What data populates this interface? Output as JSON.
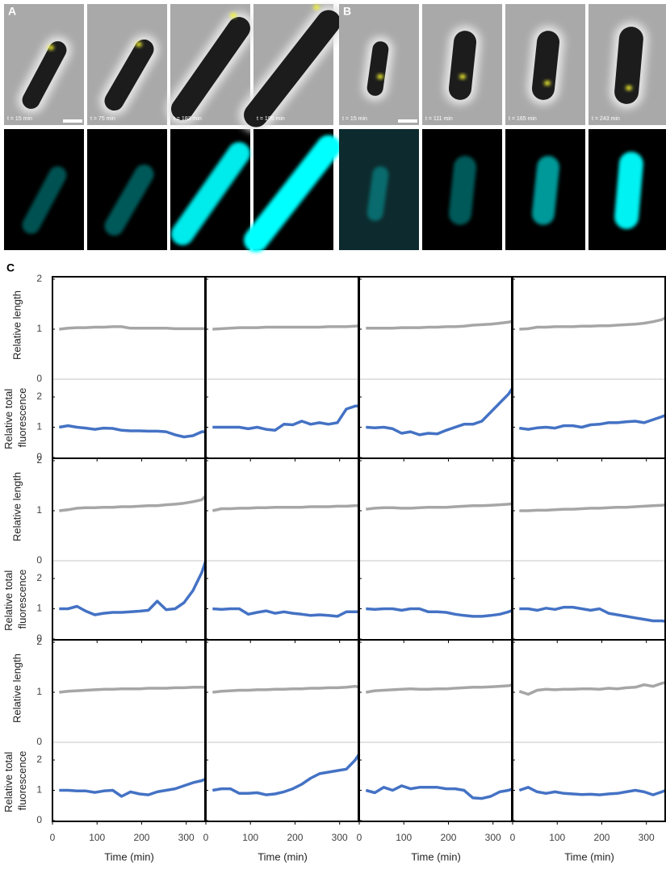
{
  "figure": {
    "a_label": "A",
    "b_label": "B",
    "c_label": "C",
    "a_times": [
      "t = 15 min",
      "t = 75 min",
      "t = 183 min",
      "t = 195 min"
    ],
    "b_times": [
      "t = 15 min",
      "t = 111 min",
      "t = 165 min",
      "t = 243 min"
    ],
    "ylabel": "Relative length",
    "y2label": "Relative total fluorescence",
    "xlabel": "Time (min)"
  },
  "chart_data": [
    {
      "type": "line",
      "x": [
        15,
        35,
        55,
        75,
        95,
        115,
        135,
        155,
        175,
        195,
        215,
        235,
        255,
        275,
        295,
        315,
        335,
        344
      ],
      "xlim": [
        0,
        344
      ],
      "xticks": [
        0,
        100,
        200,
        300
      ],
      "ylim": [
        0,
        2
      ],
      "yticks": [
        0,
        1,
        2
      ],
      "y2lim": [
        0,
        2
      ],
      "y2ticks": [
        0,
        1,
        2
      ],
      "series": [
        {
          "color": "#a6a6a6",
          "values": [
            1.0,
            1.02,
            1.03,
            1.03,
            1.04,
            1.04,
            1.05,
            1.05,
            1.02,
            1.02,
            1.02,
            1.02,
            1.02,
            1.01,
            1.01,
            1.01,
            1.01,
            1.01
          ]
        },
        {
          "color": "#4472c4",
          "axis": "y2",
          "values": [
            1.0,
            1.05,
            1.0,
            0.97,
            0.93,
            0.97,
            0.96,
            0.9,
            0.88,
            0.88,
            0.87,
            0.87,
            0.85,
            0.75,
            0.68,
            0.72,
            0.85,
            0.85
          ]
        }
      ]
    },
    {
      "type": "line",
      "x": [
        15,
        35,
        55,
        75,
        95,
        115,
        135,
        155,
        175,
        195,
        215,
        235,
        255,
        275,
        295,
        315,
        335,
        344
      ],
      "xlim": [
        0,
        344
      ],
      "xticks": [
        0,
        100,
        200,
        300
      ],
      "ylim": [
        0,
        2
      ],
      "yticks": [
        0,
        1,
        2
      ],
      "y2lim": [
        0,
        2
      ],
      "y2ticks": [
        0,
        1,
        2
      ],
      "series": [
        {
          "color": "#a6a6a6",
          "values": [
            1.0,
            1.01,
            1.02,
            1.03,
            1.03,
            1.03,
            1.04,
            1.04,
            1.04,
            1.04,
            1.04,
            1.04,
            1.04,
            1.05,
            1.05,
            1.05,
            1.06,
            1.07
          ]
        },
        {
          "color": "#4472c4",
          "axis": "y2",
          "values": [
            1.0,
            1.0,
            1.0,
            1.0,
            0.95,
            1.0,
            0.93,
            0.9,
            1.1,
            1.08,
            1.2,
            1.1,
            1.15,
            1.1,
            1.15,
            1.6,
            1.7,
            1.7
          ]
        }
      ]
    },
    {
      "type": "line",
      "x": [
        15,
        35,
        55,
        75,
        95,
        115,
        135,
        155,
        175,
        195,
        215,
        235,
        255,
        275,
        295,
        315,
        335,
        344
      ],
      "xlim": [
        0,
        344
      ],
      "xticks": [
        0,
        100,
        200,
        300
      ],
      "ylim": [
        0,
        2
      ],
      "yticks": [
        0,
        1,
        2
      ],
      "y2lim": [
        0,
        2
      ],
      "y2ticks": [
        0,
        1,
        2
      ],
      "series": [
        {
          "color": "#a6a6a6",
          "values": [
            1.02,
            1.02,
            1.02,
            1.02,
            1.03,
            1.03,
            1.03,
            1.04,
            1.04,
            1.05,
            1.05,
            1.06,
            1.08,
            1.09,
            1.1,
            1.12,
            1.14,
            1.16
          ]
        },
        {
          "color": "#4472c4",
          "axis": "y2",
          "values": [
            1.0,
            0.98,
            1.0,
            0.95,
            0.8,
            0.85,
            0.75,
            0.8,
            0.78,
            0.9,
            1.0,
            1.1,
            1.1,
            1.2,
            1.5,
            1.8,
            2.1,
            2.3
          ]
        }
      ]
    },
    {
      "type": "line",
      "x": [
        15,
        35,
        55,
        75,
        95,
        115,
        135,
        155,
        175,
        195,
        215,
        235,
        255,
        275,
        295,
        315,
        335,
        344
      ],
      "xlim": [
        0,
        344
      ],
      "xticks": [
        0,
        100,
        200,
        300
      ],
      "ylim": [
        0,
        2
      ],
      "yticks": [
        0,
        1,
        2
      ],
      "y2lim": [
        0,
        2
      ],
      "y2ticks": [
        0,
        1,
        2
      ],
      "series": [
        {
          "color": "#a6a6a6",
          "values": [
            1.0,
            1.01,
            1.04,
            1.04,
            1.05,
            1.05,
            1.05,
            1.06,
            1.06,
            1.07,
            1.07,
            1.08,
            1.09,
            1.1,
            1.12,
            1.15,
            1.19,
            1.24
          ]
        },
        {
          "color": "#4472c4",
          "axis": "y2",
          "values": [
            0.97,
            0.93,
            0.98,
            1.0,
            0.97,
            1.05,
            1.05,
            1.0,
            1.08,
            1.1,
            1.15,
            1.15,
            1.18,
            1.2,
            1.15,
            1.25,
            1.35,
            1.4
          ]
        }
      ]
    },
    {
      "type": "line",
      "x": [
        15,
        35,
        55,
        75,
        95,
        115,
        135,
        155,
        175,
        195,
        215,
        235,
        255,
        275,
        295,
        315,
        335,
        344
      ],
      "xlim": [
        0,
        344
      ],
      "xticks": [
        0,
        100,
        200,
        300
      ],
      "ylim": [
        0,
        2
      ],
      "yticks": [
        0,
        1,
        2
      ],
      "y2lim": [
        0,
        2
      ],
      "y2ticks": [
        0,
        1,
        2
      ],
      "series": [
        {
          "color": "#a6a6a6",
          "values": [
            1.0,
            1.02,
            1.05,
            1.06,
            1.06,
            1.07,
            1.07,
            1.08,
            1.08,
            1.09,
            1.1,
            1.1,
            1.12,
            1.13,
            1.15,
            1.18,
            1.22,
            1.3
          ]
        },
        {
          "color": "#4472c4",
          "axis": "y2",
          "values": [
            1.0,
            1.0,
            1.08,
            0.92,
            0.8,
            0.85,
            0.88,
            0.88,
            0.9,
            0.92,
            0.95,
            1.25,
            0.97,
            1.0,
            1.2,
            1.6,
            2.2,
            2.6
          ]
        }
      ]
    },
    {
      "type": "line",
      "x": [
        15,
        35,
        55,
        75,
        95,
        115,
        135,
        155,
        175,
        195,
        215,
        235,
        255,
        275,
        295,
        315,
        335,
        344
      ],
      "xlim": [
        0,
        344
      ],
      "xticks": [
        0,
        100,
        200,
        300
      ],
      "ylim": [
        0,
        2
      ],
      "yticks": [
        0,
        1,
        2
      ],
      "y2lim": [
        0,
        2
      ],
      "y2ticks": [
        0,
        1,
        2
      ],
      "series": [
        {
          "color": "#a6a6a6",
          "values": [
            1.0,
            1.04,
            1.04,
            1.05,
            1.05,
            1.06,
            1.06,
            1.07,
            1.07,
            1.07,
            1.07,
            1.08,
            1.08,
            1.08,
            1.09,
            1.09,
            1.1,
            1.1
          ]
        },
        {
          "color": "#4472c4",
          "axis": "y2",
          "values": [
            1.0,
            0.98,
            1.0,
            1.0,
            0.82,
            0.88,
            0.93,
            0.85,
            0.9,
            0.85,
            0.82,
            0.78,
            0.8,
            0.78,
            0.75,
            0.9,
            0.9,
            0.9
          ]
        }
      ]
    },
    {
      "type": "line",
      "x": [
        15,
        35,
        55,
        75,
        95,
        115,
        135,
        155,
        175,
        195,
        215,
        235,
        255,
        275,
        295,
        315,
        335,
        344
      ],
      "xlim": [
        0,
        344
      ],
      "xticks": [
        0,
        100,
        200,
        300
      ],
      "ylim": [
        0,
        2
      ],
      "yticks": [
        0,
        1,
        2
      ],
      "y2lim": [
        0,
        2
      ],
      "y2ticks": [
        0,
        1,
        2
      ],
      "series": [
        {
          "color": "#a6a6a6",
          "values": [
            1.03,
            1.05,
            1.06,
            1.06,
            1.05,
            1.05,
            1.06,
            1.07,
            1.07,
            1.07,
            1.08,
            1.09,
            1.1,
            1.1,
            1.11,
            1.12,
            1.13,
            1.14
          ]
        },
        {
          "color": "#4472c4",
          "axis": "y2",
          "values": [
            1.0,
            0.98,
            1.0,
            1.0,
            0.95,
            1.0,
            1.0,
            0.9,
            0.9,
            0.88,
            0.82,
            0.78,
            0.75,
            0.75,
            0.78,
            0.82,
            0.9,
            0.95
          ]
        }
      ]
    },
    {
      "type": "line",
      "x": [
        15,
        35,
        55,
        75,
        95,
        115,
        135,
        155,
        175,
        195,
        215,
        235,
        255,
        275,
        295,
        315,
        335,
        344
      ],
      "xlim": [
        0,
        344
      ],
      "xticks": [
        0,
        100,
        200,
        300
      ],
      "ylim": [
        0,
        2
      ],
      "yticks": [
        0,
        1,
        2
      ],
      "y2lim": [
        0,
        2
      ],
      "y2ticks": [
        0,
        1,
        2
      ],
      "series": [
        {
          "color": "#a6a6a6",
          "values": [
            1.0,
            1.0,
            1.01,
            1.01,
            1.02,
            1.03,
            1.03,
            1.04,
            1.05,
            1.05,
            1.06,
            1.07,
            1.07,
            1.08,
            1.09,
            1.1,
            1.11,
            1.12
          ]
        },
        {
          "color": "#4472c4",
          "axis": "y2",
          "values": [
            1.0,
            1.0,
            0.95,
            1.02,
            0.98,
            1.05,
            1.05,
            1.0,
            0.95,
            1.0,
            0.85,
            0.8,
            0.75,
            0.7,
            0.65,
            0.6,
            0.6,
            0.58
          ]
        }
      ]
    },
    {
      "type": "line",
      "x": [
        15,
        35,
        55,
        75,
        95,
        115,
        135,
        155,
        175,
        195,
        215,
        235,
        255,
        275,
        295,
        315,
        335,
        344
      ],
      "xlim": [
        0,
        344
      ],
      "xticks": [
        0,
        100,
        200,
        300
      ],
      "ylim": [
        0,
        2
      ],
      "yticks": [
        0,
        1,
        2
      ],
      "y2lim": [
        0,
        2
      ],
      "y2ticks": [
        0,
        1,
        2
      ],
      "series": [
        {
          "color": "#a6a6a6",
          "values": [
            1.0,
            1.02,
            1.03,
            1.04,
            1.05,
            1.06,
            1.06,
            1.07,
            1.07,
            1.07,
            1.08,
            1.08,
            1.08,
            1.09,
            1.09,
            1.1,
            1.1,
            1.1
          ]
        },
        {
          "color": "#4472c4",
          "axis": "y2",
          "values": [
            1.0,
            1.0,
            0.98,
            0.98,
            0.93,
            0.98,
            1.0,
            0.8,
            0.95,
            0.88,
            0.85,
            0.95,
            1.0,
            1.05,
            1.15,
            1.25,
            1.32,
            1.38
          ]
        }
      ]
    },
    {
      "type": "line",
      "x": [
        15,
        35,
        55,
        75,
        95,
        115,
        135,
        155,
        175,
        195,
        215,
        235,
        255,
        275,
        295,
        315,
        335,
        344
      ],
      "xlim": [
        0,
        344
      ],
      "xticks": [
        0,
        100,
        200,
        300
      ],
      "ylim": [
        0,
        2
      ],
      "yticks": [
        0,
        1,
        2
      ],
      "y2lim": [
        0,
        2
      ],
      "y2ticks": [
        0,
        1,
        2
      ],
      "series": [
        {
          "color": "#a6a6a6",
          "values": [
            1.0,
            1.02,
            1.03,
            1.04,
            1.04,
            1.05,
            1.05,
            1.06,
            1.06,
            1.07,
            1.07,
            1.08,
            1.08,
            1.09,
            1.09,
            1.1,
            1.12,
            1.1
          ]
        },
        {
          "color": "#4472c4",
          "axis": "y2",
          "values": [
            1.0,
            1.05,
            1.05,
            0.9,
            0.9,
            0.92,
            0.85,
            0.88,
            0.95,
            1.05,
            1.2,
            1.4,
            1.55,
            1.6,
            1.65,
            1.7,
            2.0,
            2.2
          ]
        }
      ]
    },
    {
      "type": "line",
      "x": [
        15,
        35,
        55,
        75,
        95,
        115,
        135,
        155,
        175,
        195,
        215,
        235,
        255,
        275,
        295,
        315,
        335,
        344
      ],
      "xlim": [
        0,
        344
      ],
      "xticks": [
        0,
        100,
        200,
        300
      ],
      "ylim": [
        0,
        2
      ],
      "yticks": [
        0,
        1,
        2
      ],
      "y2lim": [
        0,
        2
      ],
      "y2ticks": [
        0,
        1,
        2
      ],
      "series": [
        {
          "color": "#a6a6a6",
          "values": [
            1.0,
            1.03,
            1.04,
            1.05,
            1.06,
            1.07,
            1.06,
            1.06,
            1.07,
            1.07,
            1.08,
            1.09,
            1.1,
            1.1,
            1.11,
            1.12,
            1.13,
            1.15
          ]
        },
        {
          "color": "#4472c4",
          "axis": "y2",
          "values": [
            1.0,
            0.92,
            1.1,
            1.0,
            1.15,
            1.05,
            1.1,
            1.1,
            1.1,
            1.05,
            1.05,
            1.0,
            0.75,
            0.73,
            0.8,
            0.95,
            1.0,
            1.05
          ]
        }
      ]
    },
    {
      "type": "line",
      "x": [
        15,
        35,
        55,
        75,
        95,
        115,
        135,
        155,
        175,
        195,
        215,
        235,
        255,
        275,
        295,
        315,
        335,
        344
      ],
      "xlim": [
        0,
        344
      ],
      "xticks": [
        0,
        100,
        200,
        300
      ],
      "ylim": [
        0,
        2
      ],
      "yticks": [
        0,
        1,
        2
      ],
      "y2lim": [
        0,
        2
      ],
      "y2ticks": [
        0,
        1,
        2
      ],
      "series": [
        {
          "color": "#a6a6a6",
          "values": [
            1.02,
            0.96,
            1.04,
            1.06,
            1.05,
            1.06,
            1.06,
            1.07,
            1.07,
            1.06,
            1.08,
            1.07,
            1.09,
            1.1,
            1.15,
            1.12,
            1.18,
            1.2
          ]
        },
        {
          "color": "#4472c4",
          "axis": "y2",
          "values": [
            1.0,
            1.1,
            0.95,
            0.9,
            0.95,
            0.9,
            0.88,
            0.86,
            0.87,
            0.85,
            0.88,
            0.9,
            0.95,
            1.0,
            0.95,
            0.85,
            0.95,
            1.0
          ]
        }
      ]
    }
  ]
}
